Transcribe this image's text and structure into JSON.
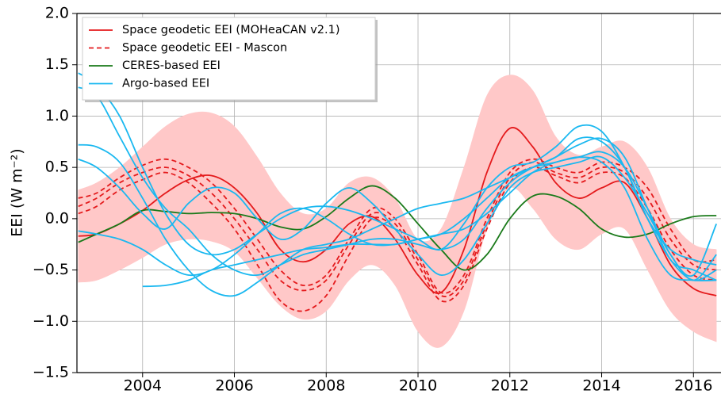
{
  "chart_data": {
    "type": "line",
    "ylabel": "EEI (W m⁻²)",
    "x": [
      2002.6,
      2003,
      2003.5,
      2004,
      2004.5,
      2005,
      2005.5,
      2006,
      2006.5,
      2007,
      2007.5,
      2008,
      2008.5,
      2009,
      2009.5,
      2010,
      2010.5,
      2011,
      2011.5,
      2012,
      2012.5,
      2013,
      2013.5,
      2014,
      2014.5,
      2015,
      2015.5,
      2016,
      2016.5
    ],
    "xlim": [
      2002.57,
      2016.6
    ],
    "xticks": [
      2004,
      2006,
      2008,
      2010,
      2012,
      2014,
      2016
    ],
    "ylim": [
      -1.5,
      2.0
    ],
    "yticks": [
      {
        "value": -1.5,
        "label": "−1.5"
      },
      {
        "value": -1.0,
        "label": "−1.0"
      },
      {
        "value": -0.5,
        "label": "−0.5"
      },
      {
        "value": 0.0,
        "label": "0.0"
      },
      {
        "value": 0.5,
        "label": "0.5"
      },
      {
        "value": 1.0,
        "label": "1.0"
      },
      {
        "value": 1.5,
        "label": "1.5"
      },
      {
        "value": 2.0,
        "label": "2.0"
      }
    ],
    "grid": true,
    "legend": "upper left",
    "band": {
      "color": "#ffc8c8",
      "upper": [
        0.28,
        0.35,
        0.5,
        0.7,
        0.9,
        1.02,
        1.03,
        0.9,
        0.6,
        0.25,
        0.05,
        0.1,
        0.35,
        0.4,
        0.2,
        -0.2,
        -0.1,
        0.5,
        1.2,
        1.4,
        1.25,
        0.8,
        0.62,
        0.7,
        0.75,
        0.5,
        0.0,
        -0.25,
        -0.3
      ],
      "lower": [
        -0.62,
        -0.6,
        -0.5,
        -0.38,
        -0.25,
        -0.2,
        -0.22,
        -0.32,
        -0.58,
        -0.85,
        -0.98,
        -0.9,
        -0.6,
        -0.45,
        -0.65,
        -1.1,
        -1.25,
        -0.9,
        -0.1,
        0.3,
        0.1,
        -0.2,
        -0.3,
        -0.15,
        -0.1,
        -0.5,
        -0.9,
        -1.1,
        -1.2
      ]
    },
    "series": [
      {
        "name": "Space geodetic EEI (MOHeaCAN v2.1)",
        "color": "#e41a1c",
        "dash": "solid",
        "lines": [
          [
            -0.17,
            -0.15,
            -0.05,
            0.08,
            0.25,
            0.38,
            0.42,
            0.3,
            0.05,
            -0.3,
            -0.42,
            -0.3,
            -0.05,
            0.02,
            -0.2,
            -0.55,
            -0.72,
            -0.3,
            0.45,
            0.88,
            0.7,
            0.35,
            0.2,
            0.3,
            0.35,
            0.0,
            -0.45,
            -0.68,
            -0.75
          ]
        ]
      },
      {
        "name": "Space geodetic EEI - Mascon",
        "color": "#e41a1c",
        "dash": "dashed",
        "lines": [
          [
            0.2,
            0.25,
            0.4,
            0.52,
            0.58,
            0.5,
            0.35,
            0.1,
            -0.2,
            -0.5,
            -0.65,
            -0.55,
            -0.2,
            0.1,
            0.0,
            -0.35,
            -0.72,
            -0.55,
            0.0,
            0.45,
            0.58,
            0.5,
            0.45,
            0.55,
            0.5,
            0.3,
            -0.1,
            -0.4,
            -0.4
          ],
          [
            0.12,
            0.2,
            0.35,
            0.45,
            0.5,
            0.42,
            0.25,
            0.0,
            -0.3,
            -0.6,
            -0.7,
            -0.6,
            -0.25,
            0.05,
            -0.05,
            -0.4,
            -0.75,
            -0.6,
            -0.05,
            0.4,
            0.55,
            0.45,
            0.4,
            0.5,
            0.45,
            0.2,
            -0.2,
            -0.45,
            -0.5
          ],
          [
            0.05,
            0.12,
            0.28,
            0.38,
            0.45,
            0.35,
            0.15,
            -0.1,
            -0.45,
            -0.8,
            -0.9,
            -0.75,
            -0.35,
            0.0,
            -0.1,
            -0.45,
            -0.8,
            -0.65,
            -0.1,
            0.35,
            0.5,
            0.42,
            0.35,
            0.45,
            0.4,
            0.1,
            -0.3,
            -0.55,
            -0.6
          ]
        ]
      },
      {
        "name": "CERES-based EEI",
        "color": "#1a7a1a",
        "dash": "solid",
        "lines": [
          [
            -0.23,
            -0.15,
            -0.05,
            0.08,
            0.07,
            0.05,
            0.06,
            0.05,
            0.0,
            -0.08,
            -0.1,
            0.02,
            0.2,
            0.32,
            0.2,
            -0.05,
            -0.3,
            -0.5,
            -0.35,
            0.0,
            0.22,
            0.22,
            0.1,
            -0.1,
            -0.18,
            -0.15,
            -0.05,
            0.02,
            0.03
          ]
        ]
      },
      {
        "name": "Argo-based EEI",
        "color": "#1ab8f0",
        "dash": "solid",
        "lines": [
          [
            1.42,
            1.3,
            1.0,
            0.5,
            0.05,
            -0.25,
            -0.35,
            -0.3,
            -0.15,
            0.0,
            0.1,
            0.12,
            0.08,
            0.0,
            -0.1,
            -0.2,
            -0.3,
            -0.05,
            0.3,
            0.5,
            0.55,
            0.7,
            0.9,
            0.85,
            0.5,
            0.0,
            -0.3,
            -0.4,
            -0.45
          ],
          [
            1.28,
            1.2,
            0.8,
            0.4,
            0.1,
            -0.1,
            -0.35,
            -0.5,
            -0.55,
            -0.45,
            -0.35,
            -0.3,
            -0.25,
            -0.2,
            -0.2,
            -0.25,
            -0.3,
            -0.2,
            0.1,
            0.35,
            0.5,
            0.6,
            0.78,
            0.75,
            0.5,
            0.0,
            -0.4,
            -0.6,
            -0.5
          ],
          [
            0.72,
            0.7,
            0.55,
            0.2,
            -0.2,
            -0.5,
            -0.7,
            -0.75,
            -0.62,
            -0.45,
            -0.3,
            -0.25,
            -0.2,
            -0.1,
            0.0,
            0.1,
            0.15,
            0.2,
            0.3,
            0.4,
            0.5,
            0.6,
            0.72,
            0.78,
            0.6,
            0.1,
            -0.4,
            -0.5,
            -0.6
          ],
          [
            0.58,
            0.5,
            0.3,
            0.05,
            -0.1,
            0.15,
            0.3,
            0.25,
            0.0,
            -0.2,
            -0.1,
            0.15,
            0.3,
            0.15,
            -0.1,
            -0.35,
            -0.55,
            -0.4,
            -0.05,
            0.3,
            0.45,
            0.5,
            0.55,
            0.6,
            0.4,
            0.05,
            -0.35,
            -0.6,
            -0.35
          ],
          [
            -0.12,
            -0.15,
            -0.2,
            -0.3,
            -0.45,
            -0.55,
            -0.5,
            -0.35,
            -0.15,
            0.05,
            0.1,
            0.0,
            -0.15,
            -0.25,
            -0.25,
            -0.2,
            -0.15,
            -0.1,
            0.05,
            0.25,
            0.45,
            0.55,
            0.6,
            0.65,
            0.5,
            0.1,
            -0.35,
            -0.55,
            -0.05
          ],
          [
            null,
            null,
            null,
            -0.66,
            -0.65,
            -0.6,
            -0.5,
            -0.45,
            -0.4,
            -0.35,
            -0.3,
            -0.28,
            -0.25,
            -0.25,
            -0.25,
            -0.2,
            -0.15,
            0.0,
            0.2,
            0.4,
            0.5,
            0.55,
            0.6,
            0.55,
            0.3,
            -0.2,
            -0.55,
            -0.6,
            -0.6
          ]
        ]
      }
    ]
  }
}
